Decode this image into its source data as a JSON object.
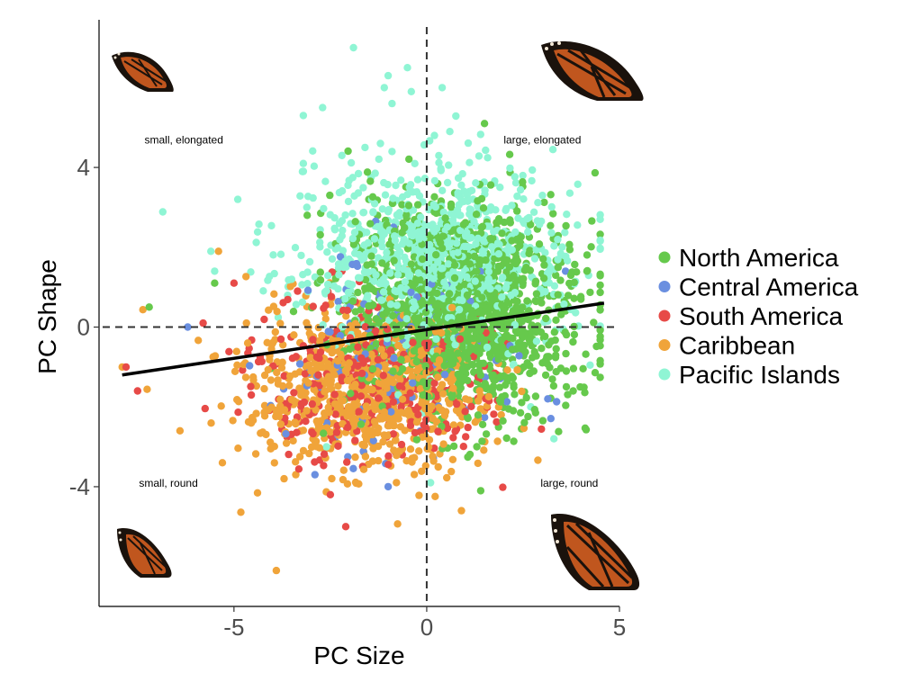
{
  "chart_data": {
    "type": "scatter",
    "title": "",
    "xlabel": "PC Size",
    "ylabel": "PC Shape",
    "xlim": [
      -8.5,
      5.0
    ],
    "ylim": [
      -7.0,
      7.7
    ],
    "xticks": [
      -5,
      0,
      5
    ],
    "xtick_labels": [
      "-5",
      "0",
      "5"
    ],
    "yticks": [
      -4,
      0,
      4
    ],
    "ytick_labels": [
      "-4",
      "0",
      "4"
    ],
    "reference_lines": {
      "x": 0,
      "y": 0,
      "style": "dashed"
    },
    "grid": false,
    "legend_position": "right",
    "series": [
      {
        "name": "North America",
        "color": "#66c94c",
        "mean": [
          0.9,
          0.4
        ],
        "sd": [
          1.5,
          1.3
        ],
        "n": 1400,
        "extra": [
          [
            1.5,
            5.1
          ],
          [
            1.4,
            -4.1
          ],
          [
            -7.2,
            0.5
          ],
          [
            -5.5,
            1.1
          ],
          [
            3.8,
            -1.6
          ],
          [
            4.0,
            0.7
          ],
          [
            -3.1,
            2.8
          ],
          [
            -1.5,
            3.2
          ]
        ]
      },
      {
        "name": "Central America",
        "color": "#6a8fe0",
        "mean": [
          -0.6,
          -0.8
        ],
        "sd": [
          1.6,
          1.2
        ],
        "n": 120,
        "extra": [
          [
            -1.0,
            -4.0
          ],
          [
            -2.9,
            -3.7
          ],
          [
            3.6,
            1.4
          ],
          [
            -6.2,
            0.0
          ],
          [
            0.0,
            1.5
          ]
        ]
      },
      {
        "name": "South America",
        "color": "#e74a47",
        "mean": [
          -1.4,
          -1.3
        ],
        "sd": [
          1.6,
          1.0
        ],
        "n": 340,
        "extra": [
          [
            -2.1,
            -5.0
          ],
          [
            -2.5,
            -4.2
          ],
          [
            -7.5,
            -1.6
          ],
          [
            -7.8,
            -1.0
          ],
          [
            -5.8,
            0.1
          ],
          [
            -5.0,
            1.1
          ],
          [
            -2.2,
            1.4
          ]
        ]
      },
      {
        "name": "Caribbean",
        "color": "#f0a43a",
        "mean": [
          -1.6,
          -1.6
        ],
        "sd": [
          1.6,
          1.0
        ],
        "n": 780,
        "extra": [
          [
            -3.9,
            -6.1
          ],
          [
            0.9,
            -4.6
          ],
          [
            -7.9,
            -1.0
          ],
          [
            -5.3,
            -3.4
          ],
          [
            -6.4,
            -2.6
          ],
          [
            -3.7,
            -3.8
          ],
          [
            -5.4,
            1.9
          ]
        ]
      },
      {
        "name": "Pacific Islands",
        "color": "#8ff5d4",
        "mean": [
          0.2,
          1.7
        ],
        "sd": [
          1.7,
          1.1
        ],
        "n": 900,
        "extra": [
          [
            -1.9,
            7.0
          ],
          [
            -0.5,
            6.5
          ],
          [
            -1.0,
            6.3
          ],
          [
            -1.1,
            6.0
          ],
          [
            -0.4,
            5.9
          ],
          [
            0.4,
            6.0
          ],
          [
            -0.9,
            5.6
          ],
          [
            -2.7,
            5.5
          ],
          [
            -3.2,
            5.3
          ],
          [
            -1.2,
            4.6
          ],
          [
            -1.6,
            4.5
          ],
          [
            -0.9,
            4.4
          ],
          [
            0.2,
            4.8
          ],
          [
            0.6,
            4.9
          ],
          [
            -2.2,
            4.3
          ],
          [
            -4.9,
            3.2
          ],
          [
            -5.6,
            1.9
          ],
          [
            -5.5,
            1.4
          ],
          [
            -3.2,
            3.9
          ],
          [
            3.0,
            3.3
          ],
          [
            -2.6,
            -3.0
          ],
          [
            3.3,
            -2.8
          ],
          [
            2.7,
            -2.0
          ],
          [
            0.1,
            -3.9
          ],
          [
            -3.2,
            4.1
          ]
        ]
      }
    ],
    "regression_line": {
      "from": [
        -7.9,
        -1.2
      ],
      "to": [
        4.6,
        0.6
      ]
    },
    "annotations": [
      {
        "text": "small, elongated",
        "x": -6.3,
        "y": 4.6
      },
      {
        "text": "large, elongated",
        "x": 3.0,
        "y": 4.6
      },
      {
        "text": "small, round",
        "x": -6.7,
        "y": -4.0
      },
      {
        "text": "large, round",
        "x": 3.7,
        "y": -4.0
      }
    ]
  }
}
